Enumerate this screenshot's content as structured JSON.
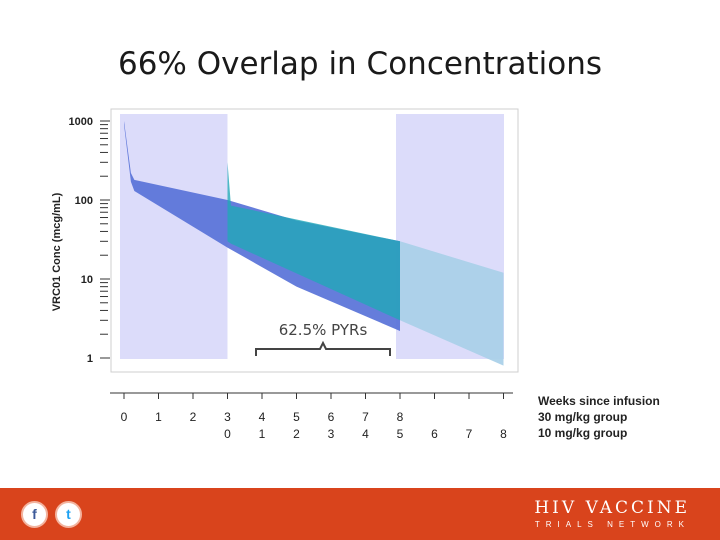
{
  "slide": {
    "title": "66% Overlap in Concentrations"
  },
  "chart_data": {
    "type": "area",
    "ylabel": "VRC01 Conc (mcg/mL)",
    "yscale": "log",
    "ylim": [
      0.5,
      1000
    ],
    "yticks": [
      "1000",
      "100",
      "10",
      "1"
    ],
    "xlim": [
      0,
      8
    ],
    "x_label_rows": [
      {
        "label": "Weeks since infusion",
        "values": [
          "0",
          "1",
          "2",
          "3",
          "4",
          "5",
          "6",
          "7",
          "8"
        ]
      },
      {
        "label": "30 mg/kg group",
        "values": [
          "",
          "",
          "",
          "",
          "",
          "",
          "",
          "",
          ""
        ]
      },
      {
        "label": "10 mg/kg group",
        "values": [
          "",
          "",
          "",
          "",
          "",
          "",
          "",
          "",
          ""
        ]
      }
    ],
    "x_tick_rows_shown": [
      [
        "0",
        "1",
        "2",
        "3",
        "4",
        "5",
        "6",
        "7",
        "8"
      ],
      [
        "0",
        "1",
        "2",
        "3",
        "4",
        "5",
        "6",
        "7",
        "8"
      ]
    ],
    "highlight_bands": [
      [
        0,
        3
      ],
      [
        8,
        11.1
      ]
    ],
    "annotation": {
      "text": "62.5% PYRs",
      "x_start": 4,
      "x_end": 8
    },
    "series": [
      {
        "color": "#5872d8",
        "x": [
          0,
          0.2,
          0.3,
          3,
          5,
          8
        ],
        "lower": [
          900,
          170,
          130,
          25,
          8,
          2.2
        ],
        "upper": [
          1000,
          220,
          180,
          100,
          55,
          30
        ]
      },
      {
        "color": "#22a7b8",
        "x": [
          3,
          3.1,
          8
        ],
        "lower": [
          30,
          28,
          3
        ],
        "upper": [
          300,
          85,
          30
        ]
      },
      {
        "color": "#a8cfe8",
        "x": [
          8,
          11
        ],
        "lower": [
          3,
          0.8
        ],
        "upper": [
          30,
          12
        ]
      }
    ]
  },
  "footer": {
    "facebook_glyph": "f",
    "twitter_glyph": "t",
    "brand": "HIV VACCINE",
    "brand_sub": "TRIALS NETWORK",
    "color": "#d9441c"
  }
}
